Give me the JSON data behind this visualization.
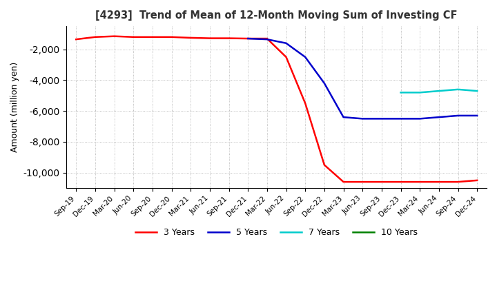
{
  "title": "[4293]  Trend of Mean of 12-Month Moving Sum of Investing CF",
  "ylabel": "Amount (million yen)",
  "ylim": [
    -11000,
    -500
  ],
  "yticks": [
    -10000,
    -8000,
    -6000,
    -4000,
    -2000
  ],
  "background_color": "#ffffff",
  "grid_color": "#aaaaaa",
  "legend_labels": [
    "3 Years",
    "5 Years",
    "7 Years",
    "10 Years"
  ],
  "legend_colors": [
    "#ff0000",
    "#0000cc",
    "#00cccc",
    "#008000"
  ],
  "x_labels": [
    "Sep-19",
    "Dec-19",
    "Mar-20",
    "Jun-20",
    "Sep-20",
    "Dec-20",
    "Mar-21",
    "Jun-21",
    "Sep-21",
    "Dec-21",
    "Mar-22",
    "Jun-22",
    "Sep-22",
    "Dec-22",
    "Mar-23",
    "Jun-23",
    "Sep-23",
    "Dec-23",
    "Mar-24",
    "Jun-24",
    "Sep-24",
    "Dec-24"
  ],
  "line_3yr": {
    "x": [
      0,
      1,
      2,
      3,
      4,
      5,
      6,
      7,
      8,
      9,
      10,
      11,
      12,
      13,
      14,
      15,
      16,
      17,
      18,
      19,
      20,
      21
    ],
    "y": [
      -1350,
      -1200,
      -1150,
      -1200,
      -1200,
      -1200,
      -1250,
      -1280,
      -1280,
      -1300,
      -1300,
      -2500,
      -5500,
      -9500,
      -10600,
      -10600,
      -10600,
      -10600,
      -10600,
      -10600,
      -10600,
      -10500
    ]
  },
  "line_5yr": {
    "x": [
      9,
      10,
      11,
      12,
      13,
      14,
      15,
      16,
      17,
      18,
      19,
      20,
      21
    ],
    "y": [
      -1300,
      -1350,
      -1600,
      -2500,
      -4200,
      -6400,
      -6500,
      -6500,
      -6500,
      -6500,
      -6400,
      -6300,
      -6300
    ]
  },
  "line_7yr": {
    "x": [
      17,
      18,
      19,
      20,
      21
    ],
    "y": [
      -4800,
      -4800,
      -4700,
      -4600,
      -4700
    ]
  },
  "line_10yr": {
    "x": [],
    "y": []
  }
}
